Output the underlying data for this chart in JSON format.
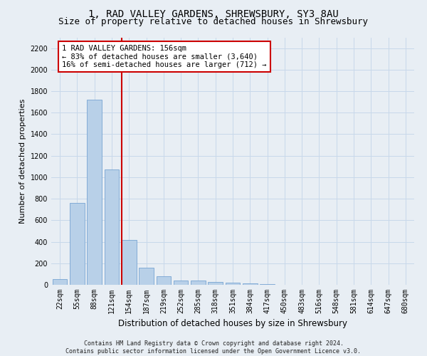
{
  "title": "1, RAD VALLEY GARDENS, SHREWSBURY, SY3 8AU",
  "subtitle": "Size of property relative to detached houses in Shrewsbury",
  "xlabel": "Distribution of detached houses by size in Shrewsbury",
  "ylabel": "Number of detached properties",
  "footer_line1": "Contains HM Land Registry data © Crown copyright and database right 2024.",
  "footer_line2": "Contains public sector information licensed under the Open Government Licence v3.0.",
  "bin_labels": [
    "22sqm",
    "55sqm",
    "88sqm",
    "121sqm",
    "154sqm",
    "187sqm",
    "219sqm",
    "252sqm",
    "285sqm",
    "318sqm",
    "351sqm",
    "384sqm",
    "417sqm",
    "450sqm",
    "483sqm",
    "516sqm",
    "548sqm",
    "581sqm",
    "614sqm",
    "647sqm",
    "680sqm"
  ],
  "bar_values": [
    55,
    760,
    1720,
    1075,
    420,
    160,
    80,
    42,
    38,
    25,
    18,
    10,
    5,
    3,
    2,
    1,
    1,
    0,
    0,
    0,
    0
  ],
  "bar_color": "#b8d0e8",
  "bar_edge_color": "#6699cc",
  "grid_color": "#c8d8ea",
  "vline_color": "#cc0000",
  "annotation_text": "1 RAD VALLEY GARDENS: 156sqm\n← 83% of detached houses are smaller (3,640)\n16% of semi-detached houses are larger (712) →",
  "annotation_box_facecolor": "#ffffff",
  "annotation_box_edgecolor": "#cc0000",
  "ylim": [
    0,
    2300
  ],
  "yticks": [
    0,
    200,
    400,
    600,
    800,
    1000,
    1200,
    1400,
    1600,
    1800,
    2000,
    2200
  ],
  "background_color": "#e8eef4",
  "title_fontsize": 10,
  "subtitle_fontsize": 9,
  "xlabel_fontsize": 8.5,
  "ylabel_fontsize": 8,
  "tick_fontsize": 7,
  "annotation_fontsize": 7.5,
  "footer_fontsize": 6
}
